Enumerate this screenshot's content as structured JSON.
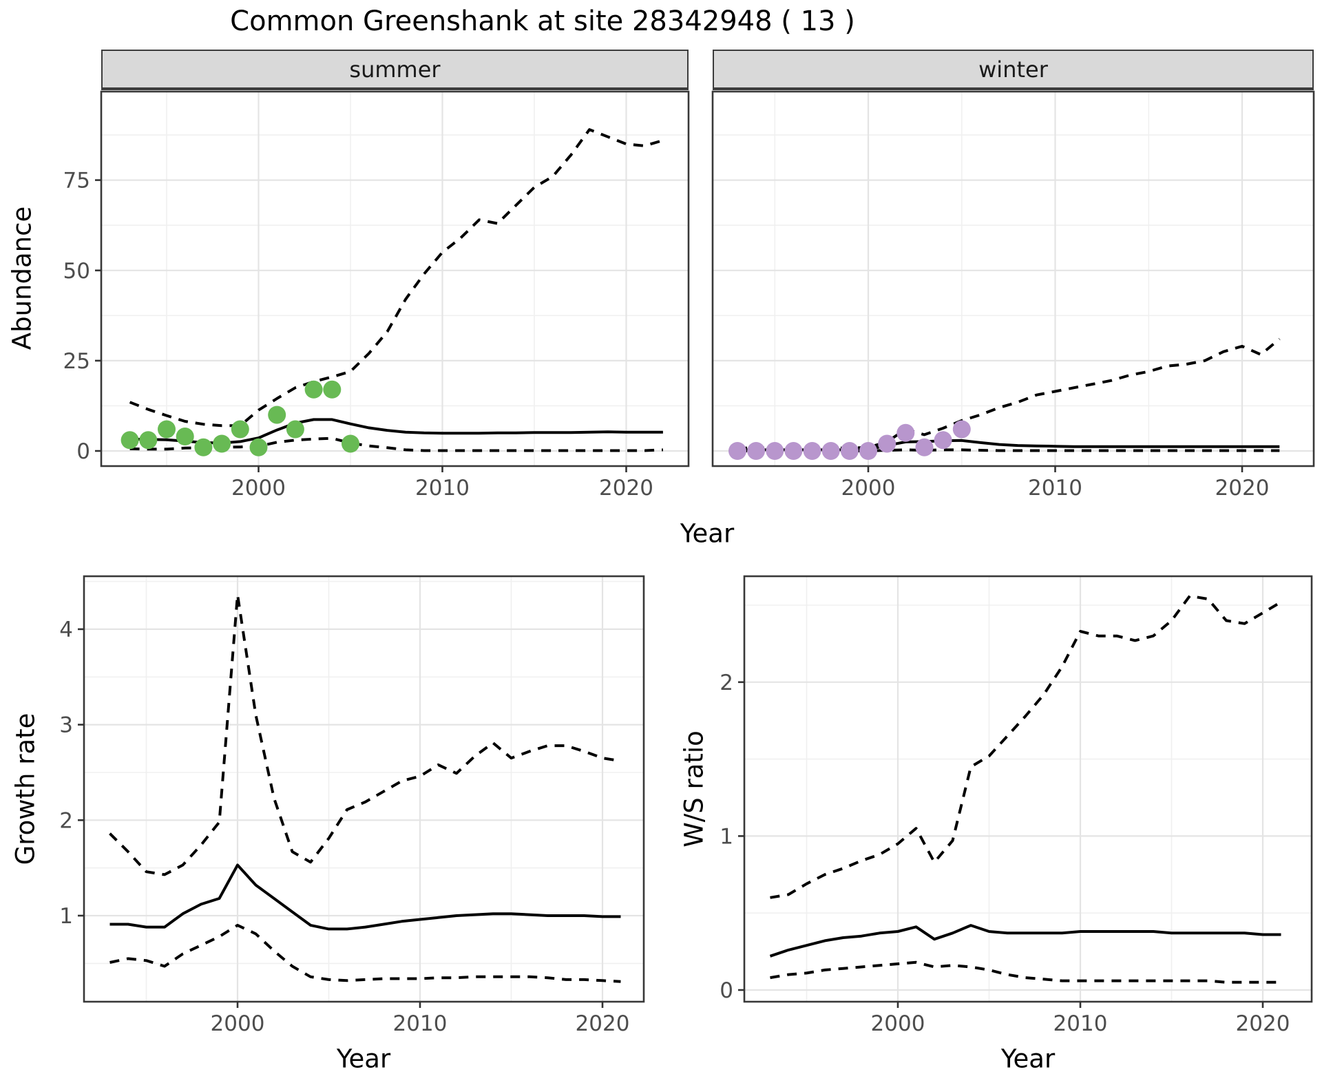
{
  "title": "Common Greenshank at site 28342948 ( 13 )",
  "facets": [
    {
      "label": "summer"
    },
    {
      "label": "winter"
    }
  ],
  "labels": {
    "abundance_y": "Abundance",
    "growth_y": "Growth rate",
    "ws_y": "W/S ratio",
    "x_top": "Year",
    "x_bottom_left": "Year",
    "x_bottom_right": "Year"
  },
  "colors": {
    "summer_points": "#68ba54",
    "winter_points": "#b896cd",
    "fit_line": "#000000",
    "ci_line": "#000000",
    "strip_bg": "#d9d9d9",
    "panel_border": "#383838",
    "grid_major": "#e4e4e4",
    "grid_minor": "#f0f0f0",
    "tick_mark": "#333333",
    "tick_text": "#4d4d4d"
  },
  "chart_data": [
    {
      "id": "abundance_summer",
      "type": "line",
      "facet": "summer",
      "xlabel": "Year",
      "ylabel": "Abundance",
      "xticks": [
        2000,
        2010,
        2020
      ],
      "xminor": [
        1995,
        2005,
        2015
      ],
      "yticks": [
        0,
        25,
        50,
        75
      ],
      "yminor": [
        12.5,
        37.5,
        62.5,
        87.5
      ],
      "xlim": [
        1991.4,
        2023.4
      ],
      "ylim": [
        -4.5,
        99.5
      ],
      "years": [
        1993,
        1994,
        1995,
        1996,
        1997,
        1998,
        1999,
        2000,
        2001,
        2002,
        2003,
        2004,
        2005,
        2006,
        2007,
        2008,
        2009,
        2010,
        2011,
        2012,
        2013,
        2014,
        2015,
        2016,
        2017,
        2018,
        2019,
        2020,
        2021,
        2022
      ],
      "fit": [
        3.3,
        3.2,
        3.1,
        2.7,
        2.3,
        2.2,
        2.6,
        3.6,
        5.8,
        7.7,
        8.7,
        8.7,
        7.5,
        6.4,
        5.7,
        5.2,
        5.0,
        4.9,
        4.9,
        4.9,
        5.0,
        5.0,
        5.1,
        5.1,
        5.1,
        5.2,
        5.3,
        5.2,
        5.2,
        5.2
      ],
      "ci_upper": [
        13.5,
        11.5,
        9.8,
        8.2,
        7.4,
        7.0,
        7.0,
        11.3,
        14.5,
        17.5,
        19.2,
        20.5,
        22,
        27,
        33,
        42,
        49,
        55,
        59,
        64,
        63,
        68,
        73,
        76,
        82,
        89,
        87,
        85,
        84.5,
        86
      ],
      "ci_lower": [
        0.6,
        0.5,
        0.5,
        0.8,
        0.9,
        1.0,
        1.1,
        1.3,
        2.4,
        3.0,
        3.3,
        3.5,
        2.2,
        1.4,
        0.9,
        0.3,
        0.1,
        0.1,
        0.1,
        0.1,
        0.1,
        0.1,
        0.1,
        0.1,
        0.1,
        0.1,
        0.1,
        0.1,
        0.1,
        0.3
      ],
      "obs_years": [
        1993,
        1994,
        1995,
        1996,
        1997,
        1998,
        1999,
        2000,
        2001,
        2002,
        2003,
        2004,
        2005
      ],
      "obs": [
        3,
        3,
        6,
        4,
        1,
        2,
        6,
        1,
        10,
        6,
        17,
        17,
        2
      ],
      "point_color": "#68ba54"
    },
    {
      "id": "abundance_winter",
      "type": "line",
      "facet": "winter",
      "xlabel": "Year",
      "ylabel": "Abundance",
      "xticks": [
        2000,
        2010,
        2020
      ],
      "xminor": [
        1995,
        2005,
        2015
      ],
      "yticks": [
        0,
        25,
        50,
        75
      ],
      "yminor": [
        12.5,
        37.5,
        62.5,
        87.5
      ],
      "xlim": [
        1991.4,
        2023.9
      ],
      "ylim": [
        -4.5,
        99.5
      ],
      "years": [
        1993,
        1994,
        1995,
        1996,
        1997,
        1998,
        1999,
        2000,
        2001,
        2002,
        2003,
        2004,
        2005,
        2006,
        2007,
        2008,
        2009,
        2010,
        2011,
        2012,
        2013,
        2014,
        2015,
        2016,
        2017,
        2018,
        2019,
        2020,
        2021,
        2022
      ],
      "fit": [
        0.3,
        0.3,
        0.3,
        0.3,
        0.3,
        0.3,
        0.3,
        0.4,
        1.5,
        2.5,
        2.6,
        2.8,
        2.9,
        2.3,
        1.8,
        1.5,
        1.4,
        1.3,
        1.2,
        1.2,
        1.2,
        1.2,
        1.2,
        1.2,
        1.2,
        1.2,
        1.2,
        1.2,
        1.2,
        1.2
      ],
      "ci_upper": [
        0.8,
        0.8,
        0.8,
        0.8,
        0.8,
        0.8,
        0.8,
        1.0,
        2.5,
        6.0,
        4.5,
        6.3,
        8.4,
        10,
        12,
        13.5,
        15.5,
        16.5,
        17.5,
        18.5,
        19.5,
        21,
        22,
        23.5,
        24,
        25,
        27.5,
        29,
        26.7,
        31
      ],
      "ci_lower": [
        0,
        0,
        0,
        0,
        0,
        0,
        0,
        0,
        0.2,
        0.3,
        0.2,
        0.3,
        0.3,
        0.2,
        0.1,
        0.1,
        0.1,
        0.1,
        0.1,
        0.1,
        0.1,
        0.1,
        0.1,
        0.1,
        0.1,
        0.1,
        0.1,
        0.1,
        0.1,
        0.1
      ],
      "obs_years": [
        1993,
        1994,
        1995,
        1996,
        1997,
        1998,
        1999,
        2000,
        2001,
        2002,
        2003,
        2004,
        2005
      ],
      "obs": [
        0,
        0,
        0,
        0,
        0,
        0,
        0,
        0,
        2,
        5,
        1,
        3,
        6
      ],
      "point_color": "#b896cd"
    },
    {
      "id": "growth",
      "type": "line",
      "facet": null,
      "xlabel": "Year",
      "ylabel": "Growth rate",
      "xticks": [
        2000,
        2010,
        2020
      ],
      "xminor": [
        1995,
        2005,
        2015
      ],
      "yticks": [
        1,
        2,
        3,
        4
      ],
      "yminor": [
        0.5,
        1.5,
        2.5,
        3.5,
        4.5
      ],
      "xlim": [
        1991.6,
        2022.3
      ],
      "ylim": [
        0.1,
        4.56
      ],
      "years": [
        1993,
        1994,
        1995,
        1996,
        1997,
        1998,
        1999,
        2000,
        2001,
        2002,
        2003,
        2004,
        2005,
        2006,
        2007,
        2008,
        2009,
        2010,
        2011,
        2012,
        2013,
        2014,
        2015,
        2016,
        2017,
        2018,
        2019,
        2020,
        2021
      ],
      "fit": [
        0.91,
        0.91,
        0.88,
        0.88,
        1.02,
        1.12,
        1.18,
        1.53,
        1.32,
        1.18,
        1.04,
        0.9,
        0.86,
        0.86,
        0.88,
        0.91,
        0.94,
        0.96,
        0.98,
        1.0,
        1.01,
        1.02,
        1.02,
        1.01,
        1.0,
        1.0,
        1.0,
        0.99,
        0.99
      ],
      "ci_upper": [
        1.86,
        1.67,
        1.46,
        1.43,
        1.53,
        1.74,
        1.98,
        4.36,
        3.1,
        2.23,
        1.67,
        1.56,
        1.81,
        2.11,
        2.19,
        2.3,
        2.41,
        2.46,
        2.58,
        2.49,
        2.67,
        2.81,
        2.65,
        2.72,
        2.78,
        2.78,
        2.72,
        2.65,
        2.62
      ],
      "ci_lower": [
        0.51,
        0.55,
        0.53,
        0.47,
        0.6,
        0.69,
        0.78,
        0.9,
        0.81,
        0.63,
        0.47,
        0.36,
        0.33,
        0.32,
        0.33,
        0.34,
        0.34,
        0.34,
        0.35,
        0.35,
        0.36,
        0.36,
        0.36,
        0.36,
        0.35,
        0.33,
        0.33,
        0.32,
        0.31
      ],
      "obs_years": [],
      "obs": [],
      "point_color": null
    },
    {
      "id": "ws",
      "type": "line",
      "facet": null,
      "xlabel": "Year",
      "ylabel": "W/S ratio",
      "xticks": [
        2000,
        2010,
        2020
      ],
      "xminor": [
        1995,
        2005,
        2015
      ],
      "yticks": [
        0,
        1,
        2
      ],
      "yminor": [
        0.5,
        1.5,
        2.5
      ],
      "xlim": [
        1991.6,
        2022.7
      ],
      "ylim": [
        -0.07,
        2.69
      ],
      "years": [
        1993,
        1994,
        1995,
        1996,
        1997,
        1998,
        1999,
        2000,
        2001,
        2002,
        2003,
        2004,
        2005,
        2006,
        2007,
        2008,
        2009,
        2010,
        2011,
        2012,
        2013,
        2014,
        2015,
        2016,
        2017,
        2018,
        2019,
        2020,
        2021
      ],
      "fit": [
        0.22,
        0.26,
        0.29,
        0.32,
        0.34,
        0.35,
        0.37,
        0.38,
        0.41,
        0.33,
        0.37,
        0.42,
        0.38,
        0.37,
        0.37,
        0.37,
        0.37,
        0.38,
        0.38,
        0.38,
        0.38,
        0.38,
        0.37,
        0.37,
        0.37,
        0.37,
        0.37,
        0.36,
        0.36
      ],
      "ci_upper": [
        0.6,
        0.62,
        0.69,
        0.75,
        0.79,
        0.84,
        0.88,
        0.95,
        1.05,
        0.83,
        0.97,
        1.45,
        1.52,
        1.65,
        1.78,
        1.92,
        2.1,
        2.33,
        2.3,
        2.3,
        2.27,
        2.3,
        2.4,
        2.56,
        2.54,
        2.4,
        2.38,
        2.45,
        2.52
      ],
      "ci_lower": [
        0.08,
        0.1,
        0.11,
        0.13,
        0.14,
        0.15,
        0.16,
        0.17,
        0.18,
        0.15,
        0.16,
        0.15,
        0.13,
        0.1,
        0.08,
        0.07,
        0.06,
        0.06,
        0.06,
        0.06,
        0.06,
        0.06,
        0.06,
        0.06,
        0.06,
        0.05,
        0.05,
        0.05,
        0.05
      ],
      "obs_years": [],
      "obs": [],
      "point_color": null
    }
  ]
}
